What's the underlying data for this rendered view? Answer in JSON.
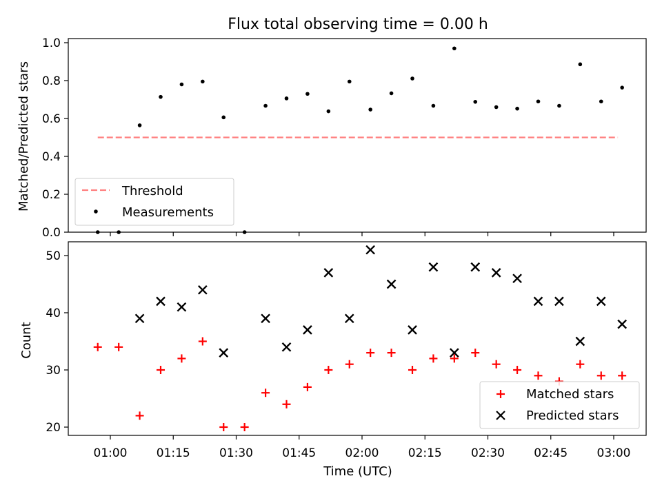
{
  "chart_data": [
    {
      "type": "scatter",
      "title": "Flux total observing time = 0.00 h",
      "ylabel": "Matched/Predicted stars",
      "ylim": [
        0,
        1.02
      ],
      "yticks": [
        "0.0",
        "0.2",
        "0.4",
        "0.6",
        "0.8",
        "1.0"
      ],
      "grid": false,
      "legend_position": "lower-left",
      "series": [
        {
          "name": "Threshold",
          "style": "dashed-line",
          "color": "#ff7f7f",
          "x": [
            "00:57",
            "03:01"
          ],
          "y": [
            0.5,
            0.5
          ]
        },
        {
          "name": "Measurements",
          "style": "dot",
          "color": "#000000",
          "x": [
            "00:57",
            "01:02",
            "01:07",
            "01:12",
            "01:17",
            "01:22",
            "01:27",
            "01:32",
            "01:37",
            "01:42",
            "01:47",
            "01:52",
            "01:57",
            "02:02",
            "02:07",
            "02:12",
            "02:17",
            "02:22",
            "02:27",
            "02:32",
            "02:37",
            "02:42",
            "02:47",
            "02:52",
            "02:57",
            "03:02"
          ],
          "y": [
            0.0,
            0.0,
            0.564,
            0.714,
            0.78,
            0.795,
            0.606,
            0.0,
            0.667,
            0.706,
            0.73,
            0.638,
            0.795,
            0.647,
            0.733,
            0.811,
            0.667,
            0.97,
            0.688,
            0.66,
            0.652,
            0.69,
            0.667,
            0.886,
            0.69,
            0.763
          ]
        }
      ]
    },
    {
      "type": "scatter",
      "xlabel": "Time (UTC)",
      "ylabel": "Count",
      "ylim": [
        18.5,
        52.5
      ],
      "yticks": [
        "20",
        "30",
        "40",
        "50"
      ],
      "xticks": [
        "01:00",
        "01:15",
        "01:30",
        "01:45",
        "02:00",
        "02:15",
        "02:30",
        "02:45",
        "03:00"
      ],
      "grid": false,
      "legend_position": "lower-right",
      "series": [
        {
          "name": "Matched stars",
          "marker": "plus",
          "color": "#ff0000",
          "x": [
            "00:57",
            "01:02",
            "01:07",
            "01:12",
            "01:17",
            "01:22",
            "01:27",
            "01:32",
            "01:37",
            "01:42",
            "01:47",
            "01:52",
            "01:57",
            "02:02",
            "02:07",
            "02:12",
            "02:17",
            "02:22",
            "02:27",
            "02:32",
            "02:37",
            "02:42",
            "02:47",
            "02:52",
            "02:57",
            "03:02"
          ],
          "y": [
            34,
            34,
            22,
            30,
            32,
            35,
            20,
            20,
            26,
            24,
            27,
            30,
            31,
            33,
            33,
            30,
            32,
            32,
            33,
            31,
            30,
            29,
            28,
            31,
            29,
            29
          ]
        },
        {
          "name": "Predicted stars",
          "marker": "x",
          "color": "#000000",
          "x": [
            "01:07",
            "01:12",
            "01:17",
            "01:22",
            "01:27",
            "01:37",
            "01:42",
            "01:47",
            "01:52",
            "01:57",
            "02:02",
            "02:07",
            "02:12",
            "02:17",
            "02:22",
            "02:27",
            "02:32",
            "02:37",
            "02:42",
            "02:47",
            "02:52",
            "02:57",
            "03:02"
          ],
          "y": [
            39,
            42,
            41,
            44,
            33,
            39,
            34,
            37,
            47,
            39,
            51,
            45,
            37,
            48,
            33,
            48,
            47,
            46,
            42,
            42,
            35,
            42,
            38
          ]
        }
      ]
    }
  ]
}
